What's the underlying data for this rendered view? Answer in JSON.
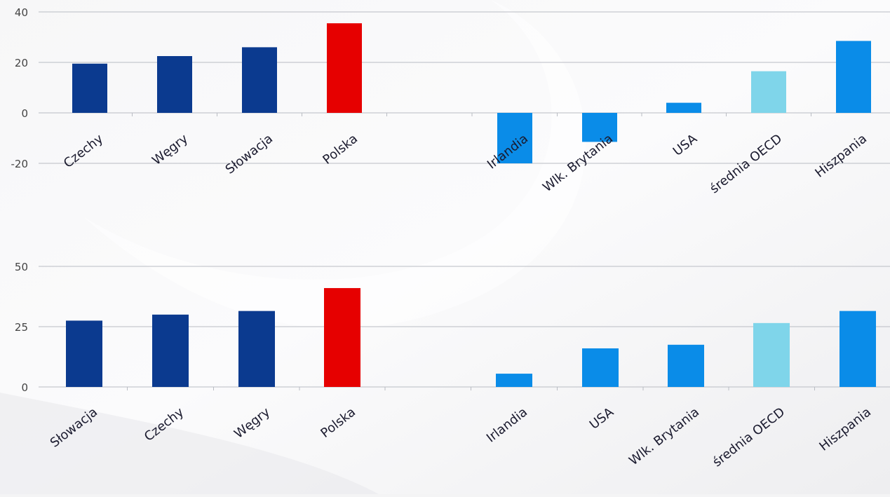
{
  "colors": {
    "cee": "#0b3a8f",
    "poland": "#e60000",
    "other": "#0a8ce8",
    "oecd_avg": "#7fd5ea",
    "grid": "#b9bcc3",
    "axis_text": "#444444",
    "label_text": "#1a1a2e"
  },
  "chart_data": [
    {
      "type": "bar",
      "categories": [
        "Czechy",
        "Węgry",
        "Słowacja",
        "Polska",
        "",
        "Irlandia",
        "Wlk. Brytania",
        "USA",
        "średnia OECD",
        "Hiszpania"
      ],
      "values": [
        19.5,
        22.5,
        26,
        35.5,
        null,
        -20,
        -11.5,
        4,
        16.5,
        28.5
      ],
      "bar_colors": [
        "cee",
        "cee",
        "cee",
        "poland",
        "",
        "other",
        "other",
        "other",
        "oecd_avg",
        "other"
      ],
      "ylim": [
        -20,
        40
      ],
      "yticks": [
        -20,
        0,
        20,
        40
      ],
      "ytick_labels": [
        "-20",
        "0",
        "20",
        "40"
      ],
      "grid": true,
      "title": "",
      "xlabel": "",
      "ylabel": ""
    },
    {
      "type": "bar",
      "categories": [
        "Słowacja",
        "Czechy",
        "Węgry",
        "Polska",
        "",
        "Irlandia",
        "USA",
        "Wlk. Brytania",
        "średnia OECD",
        "Hiszpania"
      ],
      "values": [
        27.5,
        30,
        31.5,
        41,
        null,
        5.5,
        16,
        17.5,
        26.5,
        31.5
      ],
      "bar_colors": [
        "cee",
        "cee",
        "cee",
        "poland",
        "",
        "other",
        "other",
        "other",
        "oecd_avg",
        "other"
      ],
      "ylim": [
        0,
        50
      ],
      "yticks": [
        0,
        25,
        50
      ],
      "ytick_labels": [
        "0",
        "25",
        "50"
      ],
      "grid": true,
      "title": "",
      "xlabel": "",
      "ylabel": ""
    }
  ]
}
